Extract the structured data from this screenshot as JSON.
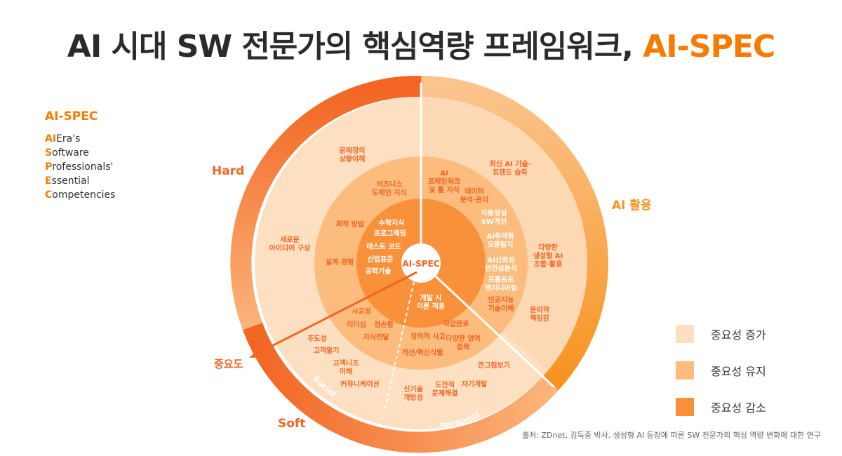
{
  "title": {
    "main": "AI 시대 SW 전문가의 핵심역량 프레임워크,",
    "accent": "AI-SPEC"
  },
  "acronym": {
    "heading": "AI-SPEC",
    "rows": [
      {
        "key": "AI",
        "rest": "Era's"
      },
      {
        "key": "S",
        "rest": "oftware"
      },
      {
        "key": "P",
        "rest": "rofessionals'"
      },
      {
        "key": "E",
        "rest": "ssential"
      },
      {
        "key": "C",
        "rest": "ompetencies"
      }
    ]
  },
  "diagram": {
    "center": "AI-SPEC",
    "labels": {
      "hard": "Hard",
      "ai_use": "AI 활용",
      "soft": "Soft",
      "social": "Social",
      "personal": "Personal",
      "importance": "중요도"
    },
    "outer": {
      "q1a": [
        "문제정의",
        "상황이해"
      ],
      "q1b": [
        "새로운",
        "아이디어 구상"
      ],
      "q2a": [
        "최신 AI 기술·",
        "트렌드 습득"
      ],
      "q2b": [
        "다양한",
        "생성형 AI",
        "조합·활용"
      ],
      "q2c": [
        "윤리적",
        "책임감"
      ],
      "q3a": [
        "주도성"
      ],
      "q3b": [
        "고객알기"
      ],
      "q3c": [
        "고객니즈",
        "이해"
      ],
      "q3d": [
        "커뮤니케이션"
      ],
      "q4a": [
        "큰그림보기"
      ],
      "q4b": [
        "자기계발"
      ],
      "q4c": [
        "도전적",
        "문제해결"
      ],
      "q4d": [
        "신기술",
        "개방성"
      ]
    },
    "middle": {
      "q1a": [
        "비즈니스",
        "도메인 지식"
      ],
      "q1b": [
        "최적 방법"
      ],
      "q1c": [
        "설계 경험"
      ],
      "q2a": [
        "AI",
        "프레임워크",
        "및 툴 지식"
      ],
      "q2b": [
        "데이터",
        "분석·관리"
      ],
      "q2c": [
        "인공지능",
        "기술이해"
      ],
      "q3a": [
        "사교성"
      ],
      "q3b": [
        "리더십"
      ],
      "q3c": [
        "겸손함"
      ],
      "q3d": [
        "지식전달"
      ],
      "q4a": [
        "작업완료"
      ],
      "q4b": [
        "창의적 사고"
      ],
      "q4c": [
        "다양한 영역",
        "접목"
      ],
      "q4d": [
        "개선/혁신식별"
      ]
    },
    "inner": {
      "q1a": [
        "수학지식"
      ],
      "q1b": [
        "프로그래밍"
      ],
      "q1c": [
        "테스트 코드"
      ],
      "q1d": [
        "산업표준"
      ],
      "q1e": [
        "공학기술"
      ],
      "q2a": [
        "자동생성",
        "SW개선"
      ],
      "q2b": [
        "AI취약점",
        "오류탐지"
      ],
      "q2c": [
        "AI신뢰성",
        "안전성분석"
      ],
      "q2d": [
        "프롬프트",
        "엔지니어링"
      ],
      "q3a": [
        "개발 시",
        "이론 적용"
      ]
    }
  },
  "legend": [
    {
      "label": "중요성 증가",
      "color": "#fde0c2"
    },
    {
      "label": "중요성 유지",
      "color": "#fbbc7d"
    },
    {
      "label": "중요성 감소",
      "color": "#f8913a"
    }
  ],
  "source": "출처: ZDnet, 김득중 박사, 생성형 AI 등장에 따른 SW 전문가의 핵심 역량 변화에 대한 연구"
}
